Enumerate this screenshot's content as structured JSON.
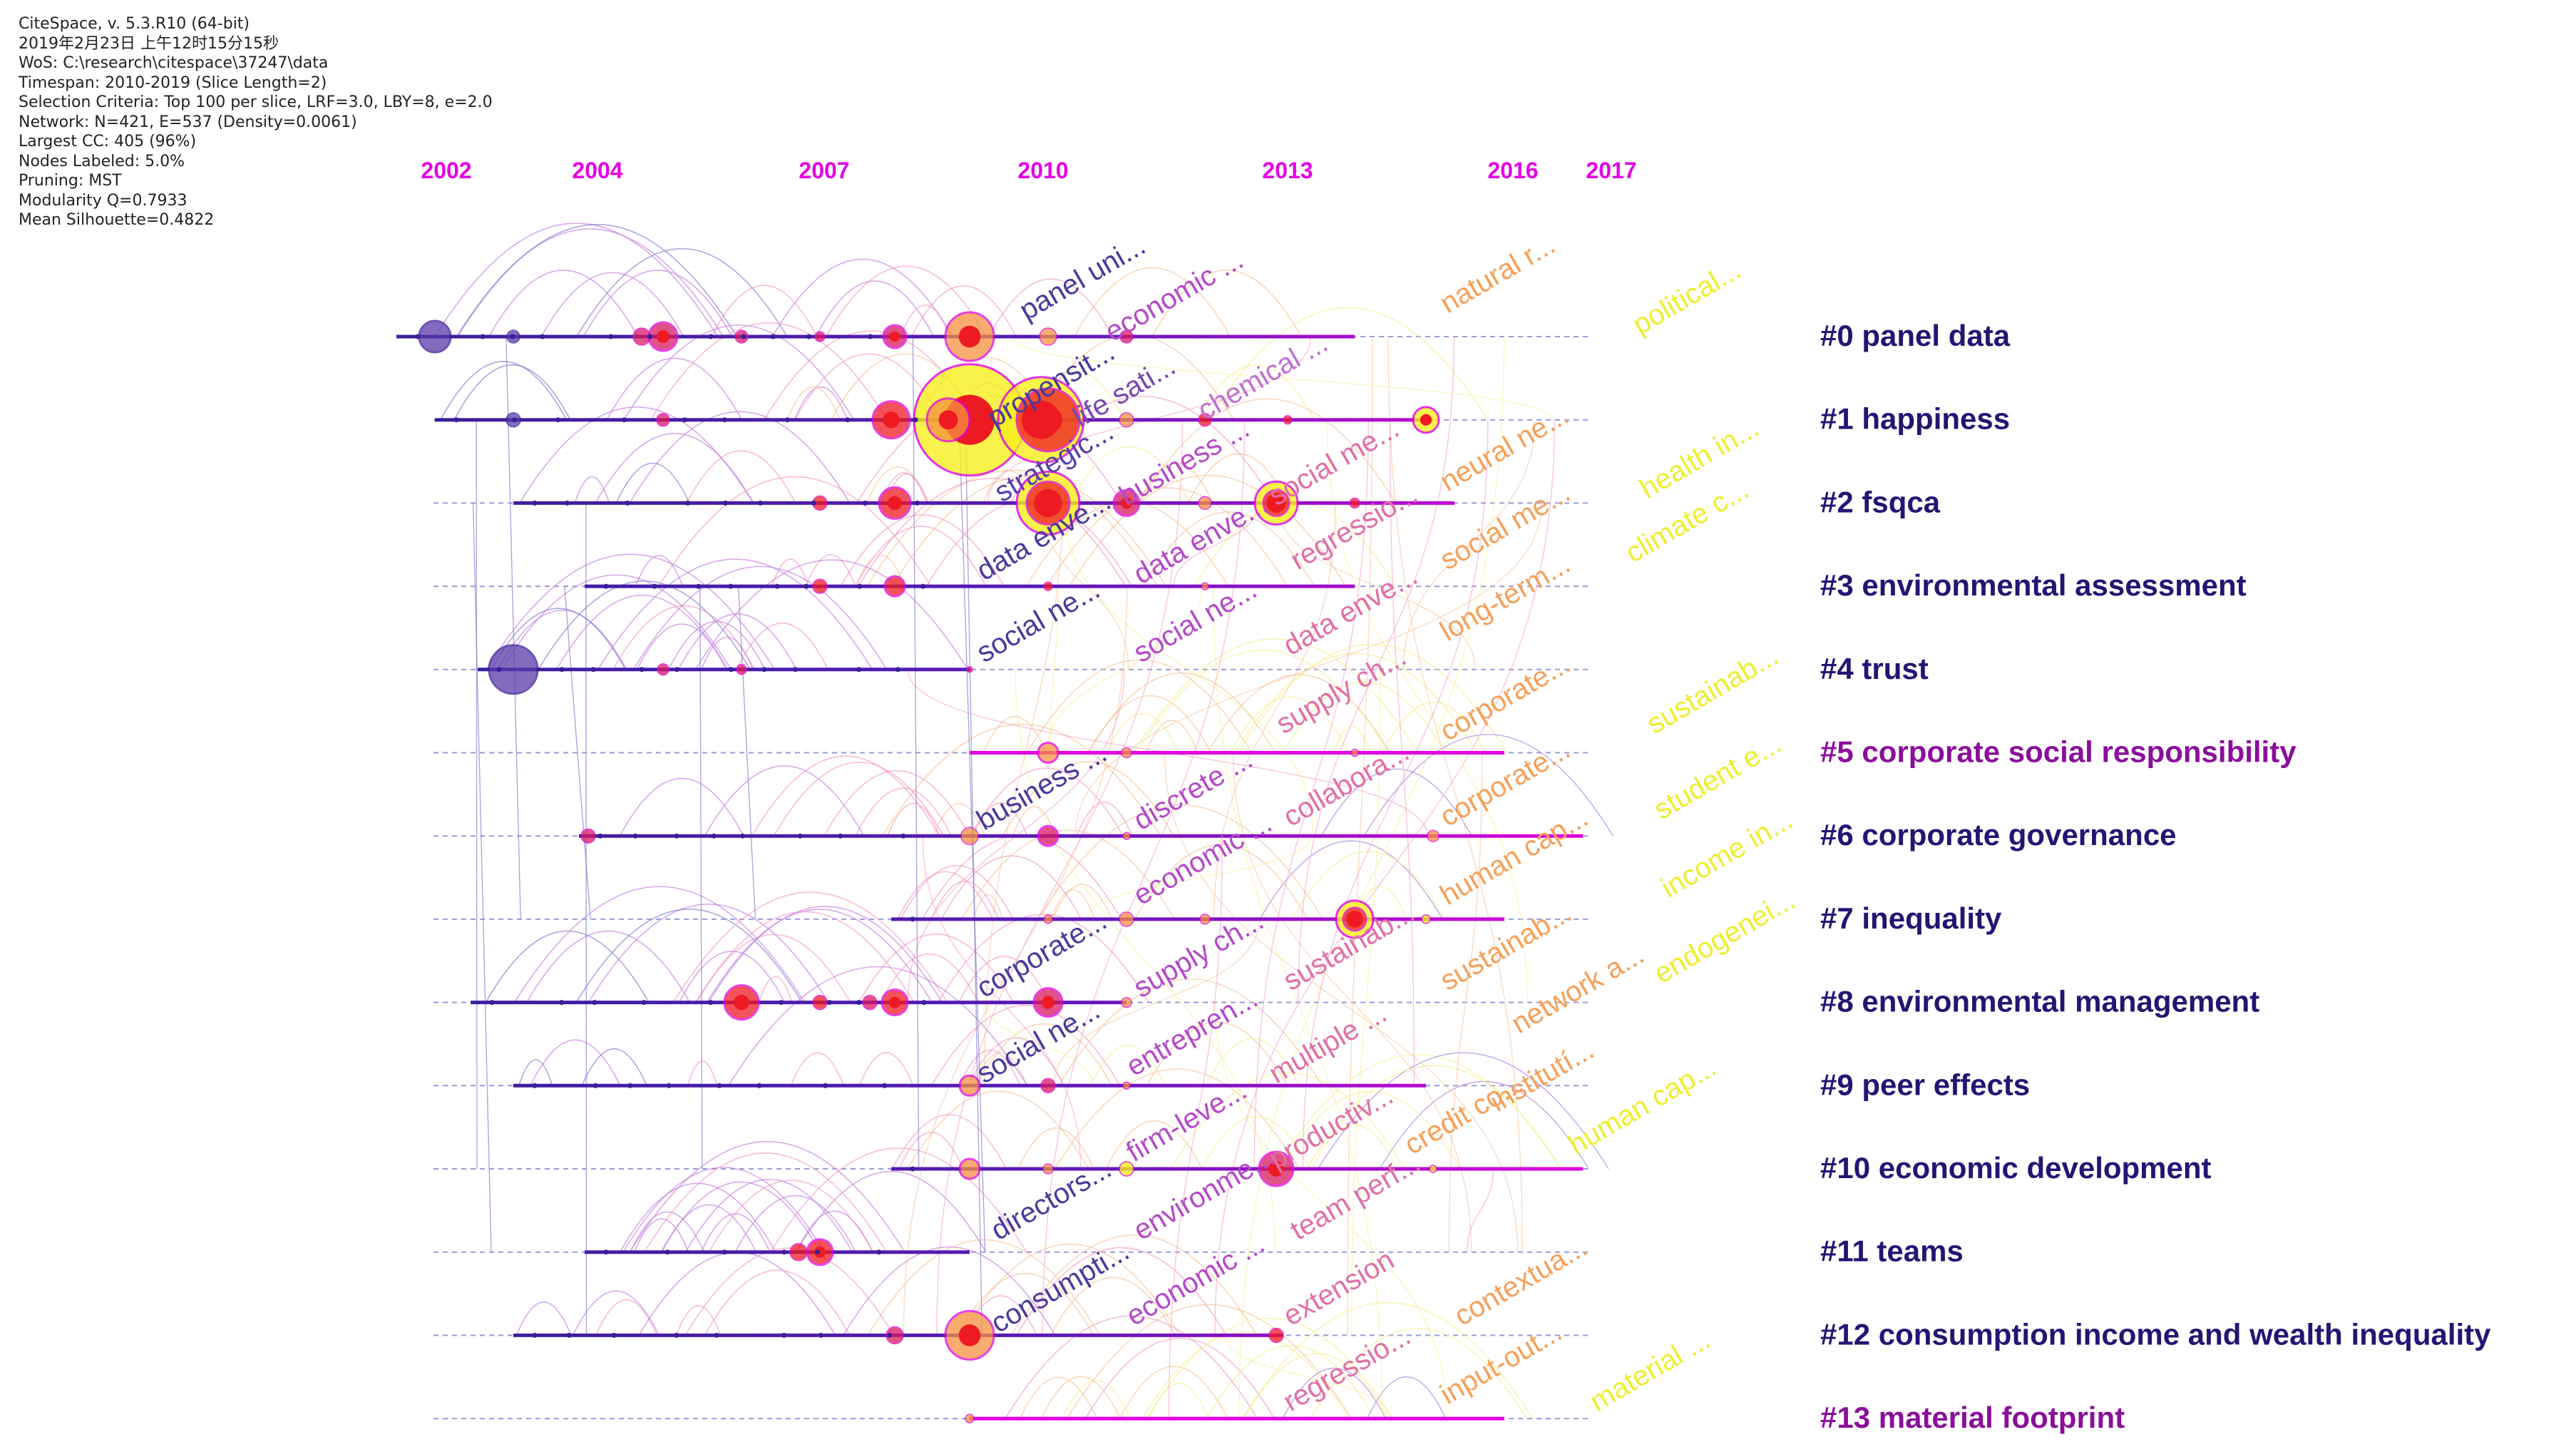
{
  "info_lines": [
    "CiteSpace, v. 5.3.R10 (64-bit)",
    "2019年2月23日 上午12时15分15秒",
    "WoS: C:\\research\\citespace\\37247\\data",
    "Timespan: 2010-2019 (Slice Length=2)",
    "Selection Criteria: Top 100 per slice, LRF=3.0, LBY=8, e=2.0",
    "Network: N=421, E=537 (Density=0.0061)",
    "Largest CC: 405 (96%)",
    "Nodes Labeled: 5.0%",
    "Pruning: MST",
    "Modularity Q=0.7933",
    "Mean Silhouette=0.4822"
  ],
  "years": [
    "2002",
    "2004",
    "2007",
    "2010",
    "2013",
    "2016",
    "2017"
  ],
  "colors": {
    "year": "#e400e4",
    "line_early": "#3a1e9a",
    "line_late": "#e000e0",
    "cluster_dark": "#241573",
    "cluster_purple": "#8a0f9a",
    "node_red": "#ee1a22",
    "node_orange": "#f6923f",
    "node_yellow": "#f7f01e"
  },
  "clusters": [
    {
      "label": "#0 panel data",
      "color": "#241573"
    },
    {
      "label": "#1 happiness",
      "color": "#241573"
    },
    {
      "label": "#2 fsqca",
      "color": "#241573"
    },
    {
      "label": "#3 environmental assessment",
      "color": "#241573"
    },
    {
      "label": "#4 trust",
      "color": "#241573"
    },
    {
      "label": "#5 corporate social responsibility",
      "color": "#8a0f9a"
    },
    {
      "label": "#6 corporate governance",
      "color": "#241573"
    },
    {
      "label": "#7 inequality",
      "color": "#241573"
    },
    {
      "label": "#8 environmental management",
      "color": "#241573"
    },
    {
      "label": "#9 peer effects",
      "color": "#241573"
    },
    {
      "label": "#10 economic development",
      "color": "#241573"
    },
    {
      "label": "#11 teams",
      "color": "#241573"
    },
    {
      "label": "#12 consumption income and wealth inequality",
      "color": "#241573"
    },
    {
      "label": "#13 material footprint",
      "color": "#8a0f9a"
    }
  ],
  "terms": [
    {
      "text": "panel uni...",
      "color": "#4a3a9a"
    },
    {
      "text": "economic ...",
      "color": "#b44ac8"
    },
    {
      "text": "natural r...",
      "color": "#f6a05a"
    },
    {
      "text": "political...",
      "color": "#eeee30"
    },
    {
      "text": "propensit...",
      "color": "#4a3a9a"
    },
    {
      "text": "life sati...",
      "color": "#7a48b0"
    },
    {
      "text": "chemical ...",
      "color": "#c070d0"
    },
    {
      "text": "strategic...",
      "color": "#5a40a8"
    },
    {
      "text": "business ...",
      "color": "#b44ac8"
    },
    {
      "text": "social me...",
      "color": "#e070a8"
    },
    {
      "text": "neural ne...",
      "color": "#f6a05a"
    },
    {
      "text": "health in...",
      "color": "#eeee30"
    },
    {
      "text": "data enve...",
      "color": "#4a3a9a"
    },
    {
      "text": "data enve...",
      "color": "#b44ac8"
    },
    {
      "text": "regressio...",
      "color": "#e070a8"
    },
    {
      "text": "social me...",
      "color": "#f6a05a"
    },
    {
      "text": "climate c...",
      "color": "#eeee30"
    },
    {
      "text": "social ne...",
      "color": "#4a3a9a"
    },
    {
      "text": "social ne...",
      "color": "#b44ac8"
    },
    {
      "text": "data enve...",
      "color": "#e070a8"
    },
    {
      "text": "long-term...",
      "color": "#f6a05a"
    },
    {
      "text": "supply ch...",
      "color": "#e070a8"
    },
    {
      "text": "business ...",
      "color": "#4a3a9a"
    },
    {
      "text": "discrete ...",
      "color": "#b44ac8"
    },
    {
      "text": "corporate...",
      "color": "#f6a05a"
    },
    {
      "text": "collabora...",
      "color": "#e070a8"
    },
    {
      "text": "corporate...",
      "color": "#f6a05a"
    },
    {
      "text": "sustainab...",
      "color": "#eeee30"
    },
    {
      "text": "economic ...",
      "color": "#b44ac8"
    },
    {
      "text": "human cap...",
      "color": "#f6a05a"
    },
    {
      "text": "student e...",
      "color": "#eeee30"
    },
    {
      "text": "corporate...",
      "color": "#4a3a9a"
    },
    {
      "text": "supply ch...",
      "color": "#b44ac8"
    },
    {
      "text": "sustainab...",
      "color": "#e070a8"
    },
    {
      "text": "income in...",
      "color": "#eeee30"
    },
    {
      "text": "social ne...",
      "color": "#4a3a9a"
    },
    {
      "text": "entrepren...",
      "color": "#b44ac8"
    },
    {
      "text": "sustainab...",
      "color": "#f6a05a"
    },
    {
      "text": "endogenei...",
      "color": "#eeee30"
    },
    {
      "text": "multiple ...",
      "color": "#e070a8"
    },
    {
      "text": "network a...",
      "color": "#f6a05a"
    },
    {
      "text": "firm-leve...",
      "color": "#b44ac8"
    },
    {
      "text": "productiv...",
      "color": "#e070a8"
    },
    {
      "text": "credit co...",
      "color": "#f6a05a"
    },
    {
      "text": "directors...",
      "color": "#4a3a9a"
    },
    {
      "text": "environme...",
      "color": "#b44ac8"
    },
    {
      "text": "institutí...",
      "color": "#f6a05a"
    },
    {
      "text": "human cap...",
      "color": "#eeee30"
    },
    {
      "text": "consumpti...",
      "color": "#4a3a9a"
    },
    {
      "text": "team perf...",
      "color": "#e070a8"
    },
    {
      "text": "economic ...",
      "color": "#b44ac8"
    },
    {
      "text": "extension",
      "color": "#e070a8"
    },
    {
      "text": "contextua...",
      "color": "#f6a05a"
    },
    {
      "text": "regressio...",
      "color": "#e070a8"
    },
    {
      "text": "input-out...",
      "color": "#f6a05a"
    },
    {
      "text": "material ...",
      "color": "#eeee30"
    }
  ]
}
